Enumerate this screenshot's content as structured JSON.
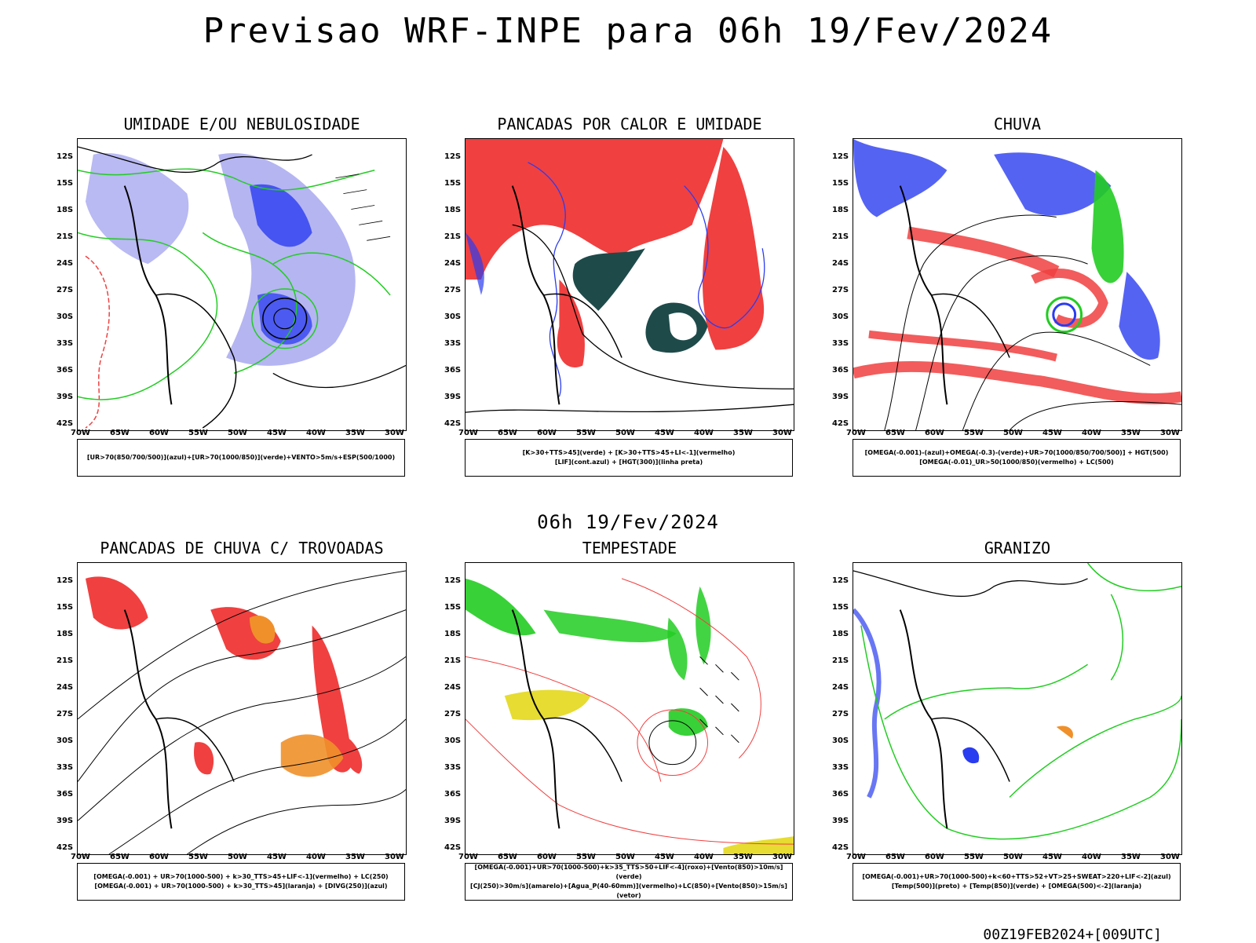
{
  "title": "Previsao WRF-INPE  para 06h 19/Fev/2024",
  "subtitle": "06h 19/Fev/2024",
  "footer": "00Z19FEB2024+[009UTC]",
  "axes": {
    "lat_labels": [
      "12S",
      "15S",
      "18S",
      "21S",
      "24S",
      "27S",
      "30S",
      "33S",
      "36S",
      "39S",
      "42S"
    ],
    "lon_labels": [
      "70W",
      "65W",
      "60W",
      "55W",
      "50W",
      "45W",
      "40W",
      "35W",
      "30W"
    ]
  },
  "colors": {
    "blue": "#2a3cf0",
    "light_blue": "#a8a8f0",
    "green": "#22cc22",
    "red": "#f04040",
    "orange": "#f0902a",
    "dark_teal": "#1e4a4a",
    "yellow": "#e6dc32"
  },
  "panels": [
    {
      "title": "UMIDADE E/OU NEBULOSIDADE",
      "legend": [
        "[UR>70(850/700/500)](azul)+[UR>70(1000/850)](verde)+VENTO>5m/s+ESP(500/1000)"
      ]
    },
    {
      "title": "PANCADAS POR CALOR E UMIDADE",
      "legend": [
        "[K>30+TTS>45](verde)  +  [K>30+TTS>45+LI<-1](vermelho)",
        "[LIF](cont.azul)  +  [HGT(300)](linha preta)"
      ]
    },
    {
      "title": "CHUVA",
      "legend": [
        "[OMEGA(-0.001)-(azul)+OMEGA(-0.3)-(verde)+UR>70(1000/850/700/500)]  +  HGT(500)",
        "[OMEGA(-0.01)_UR>50(1000/850)(vermelho)  +  LC(500)"
      ]
    },
    {
      "title": "PANCADAS DE CHUVA C/ TROVOADAS",
      "legend": [
        "[OMEGA(-0.001)  + UR>70(1000-500)  + k>30_TTS>45+LIF<-1](vermelho)  +  LC(250)",
        "[OMEGA(-0.001)  + UR>70(1000-500)  +  k>30_TTS>45](laranja)  +  [DIVG(250)](azul)"
      ]
    },
    {
      "title": "TEMPESTADE",
      "legend": [
        "[OMEGA(-0.001)+UR>70(1000-500)+k>35_TTS>50+LIF<-4](roxo)+[Vento(850)>10m/s](verde)",
        "[CJ(250)>30m/s](amarelo)+[Agua_P(40-60mm)](vermelho)+LC(850)+[Vento(850)>15m/s](vetor)"
      ]
    },
    {
      "title": "GRANIZO",
      "legend": [
        "[OMEGA(-0.001)+UR>70(1000-500)+k<60+TTS>52+VT>25+SWEAT>220+LIF<-2](azul)",
        "[Temp(500)](preto)  +  [Temp(850)](verde)  +  [OMEGA(500)<-2](laranja)"
      ]
    }
  ]
}
